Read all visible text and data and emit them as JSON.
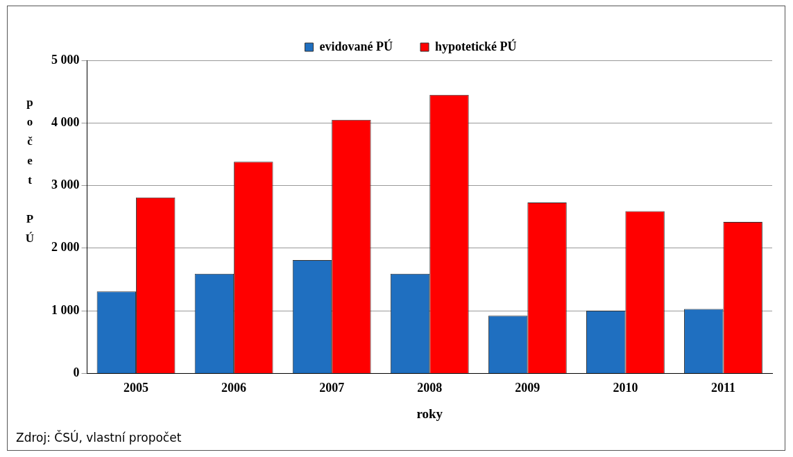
{
  "chart_data": {
    "type": "bar",
    "categories": [
      "2005",
      "2006",
      "2007",
      "2008",
      "2009",
      "2010",
      "2011"
    ],
    "series": [
      {
        "name": "evidované PÚ",
        "color": "#1f6fc0",
        "values": [
          1310,
          1590,
          1810,
          1590,
          920,
          1000,
          1030
        ]
      },
      {
        "name": "hypotetické PÚ",
        "color": "#ff0000",
        "values": [
          2810,
          3380,
          4050,
          4450,
          2730,
          2590,
          2420
        ]
      }
    ],
    "ylim": [
      0,
      5000
    ],
    "yticks": [
      0,
      {
        "value": 1000,
        "label": "1 000"
      },
      {
        "value": 2000,
        "label": "2 000"
      },
      {
        "value": 3000,
        "label": "3 000"
      },
      {
        "value": 4000,
        "label": "4 000"
      },
      {
        "value": 5000,
        "label": "5 000"
      }
    ],
    "xlabel": "roky",
    "ylabel": "počet PÚ",
    "grid": "y",
    "legend": "top",
    "annotations": [
      "Zdroj: ČSÚ, vlastní propočet"
    ]
  }
}
